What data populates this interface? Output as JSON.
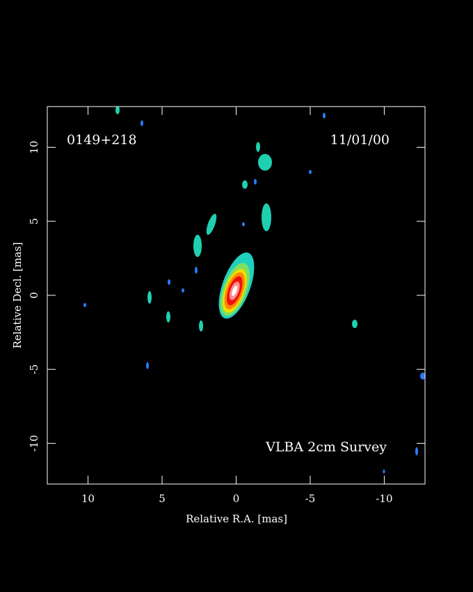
{
  "chart_data": {
    "type": "image",
    "title": "0149+218",
    "date": "11/01/00",
    "survey": "VLBA 2cm Survey",
    "x_label": "Relative R.A. [mas]",
    "y_label": "Relative Decl. [mas]",
    "xlim": [
      12.75,
      -12.75
    ],
    "ylim": [
      -12.75,
      12.75
    ],
    "xticks": [
      10,
      5,
      0,
      -5,
      -10
    ],
    "yticks": [
      10,
      5,
      0,
      -5,
      -10
    ]
  }
}
